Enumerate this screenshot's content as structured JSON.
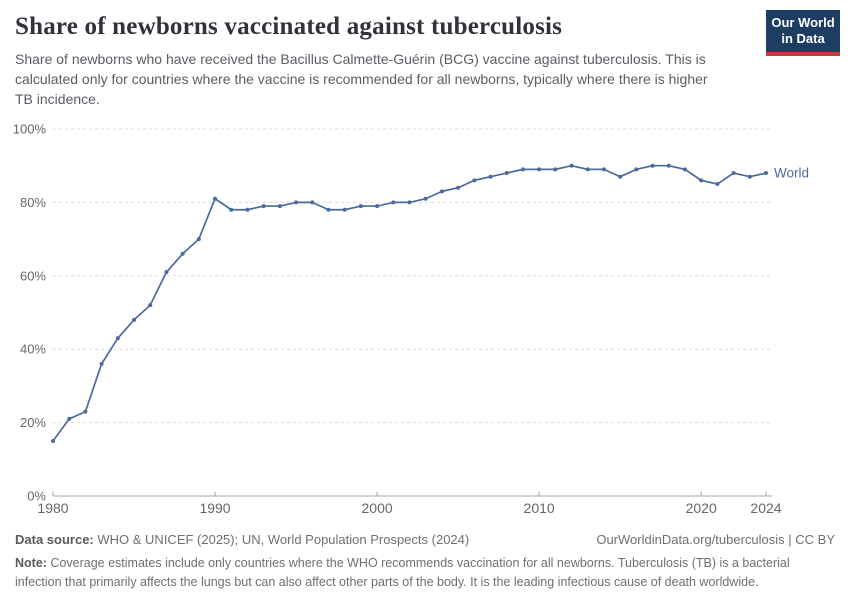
{
  "header": {
    "title": "Share of newborns vaccinated against tuberculosis",
    "subtitle": "Share of newborns who have received the Bacillus Calmette-Guérin (BCG) vaccine against tuberculosis. This is calculated only for countries where the vaccine is recommended for all newborns, typically where there is higher TB incidence.",
    "logo": {
      "line1": "Our World",
      "line2": "in Data",
      "bg_color": "#1d3d63",
      "accent_color": "#c43a3d"
    }
  },
  "chart_data": {
    "type": "line",
    "title": "Share of newborns vaccinated against tuberculosis",
    "x": [
      1980,
      1981,
      1982,
      1983,
      1984,
      1985,
      1986,
      1987,
      1988,
      1989,
      1990,
      1991,
      1992,
      1993,
      1994,
      1995,
      1996,
      1997,
      1998,
      1999,
      2000,
      2001,
      2002,
      2003,
      2004,
      2005,
      2006,
      2007,
      2008,
      2009,
      2010,
      2011,
      2012,
      2013,
      2014,
      2015,
      2016,
      2017,
      2018,
      2019,
      2020,
      2021,
      2022,
      2023,
      2024
    ],
    "series": [
      {
        "name": "World",
        "color": "#4c6a9c",
        "values": [
          15,
          21,
          23,
          36,
          43,
          48,
          52,
          61,
          66,
          70,
          81,
          78,
          78,
          79,
          79,
          80,
          80,
          78,
          78,
          79,
          79,
          80,
          80,
          81,
          83,
          84,
          86,
          87,
          88,
          89,
          89,
          89,
          90,
          89,
          89,
          87,
          89,
          90,
          90,
          89,
          86,
          85,
          88,
          87,
          88
        ]
      }
    ],
    "xlim": [
      1980,
      2024
    ],
    "ylim": [
      0,
      100
    ],
    "x_ticks": [
      1980,
      1990,
      2000,
      2010,
      2020,
      2024
    ],
    "y_ticks": [
      0,
      20,
      40,
      60,
      80,
      100
    ],
    "y_suffix": "%",
    "grid": "dashed-horizontal",
    "legend_position": "end-of-line",
    "end_label": "World",
    "colors": {
      "grid": "#dcdcdc",
      "axis": "#a5a5a5",
      "tick_text": "#666666"
    }
  },
  "footer": {
    "data_source_label": "Data source:",
    "data_source_text": "WHO & UNICEF (2025); UN, World Population Prospects (2024)",
    "credit": "OurWorldinData.org/tuberculosis | CC BY",
    "note_label": "Note:",
    "note_text": "Coverage estimates include only countries where the WHO recommends vaccination for all newborns. Tuberculosis (TB) is a bacterial infection that primarily affects the lungs but can also affect other parts of the body. It is the leading infectious cause of death worldwide."
  }
}
